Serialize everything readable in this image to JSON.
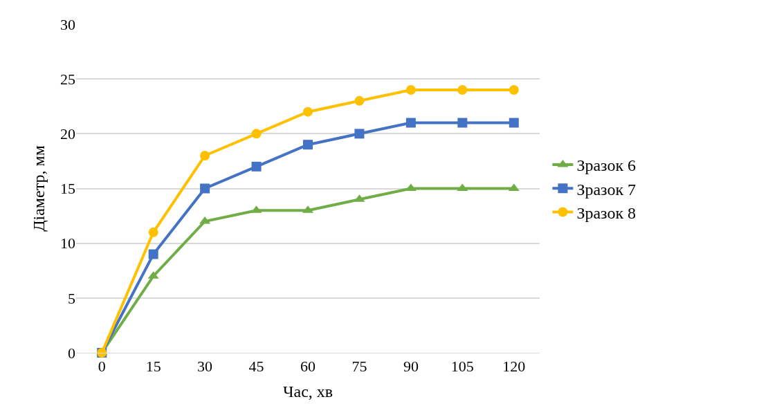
{
  "chart_data": {
    "type": "line",
    "xlabel": "Час, хв",
    "ylabel": "Діаметр, мм",
    "categories": [
      "0",
      "15",
      "30",
      "45",
      "60",
      "75",
      "90",
      "105",
      "120"
    ],
    "series": [
      {
        "name": "Зразок 6",
        "color": "#70ad47",
        "marker": "triangle",
        "values": [
          0,
          7,
          12,
          13,
          13,
          14,
          15,
          15,
          15
        ]
      },
      {
        "name": "Зразок 7",
        "color": "#4472c4",
        "marker": "square",
        "values": [
          0,
          9,
          15,
          17,
          19,
          20,
          21,
          21,
          21
        ]
      },
      {
        "name": "Зразок 8",
        "color": "#ffc000",
        "marker": "circle",
        "values": [
          0,
          11,
          18,
          20,
          22,
          23,
          24,
          24,
          24
        ]
      }
    ],
    "ylim": [
      0,
      30
    ],
    "yticks": [
      0,
      5,
      10,
      15,
      20,
      25,
      30
    ],
    "grid": "y",
    "legend": "right",
    "line_style": "solid"
  }
}
